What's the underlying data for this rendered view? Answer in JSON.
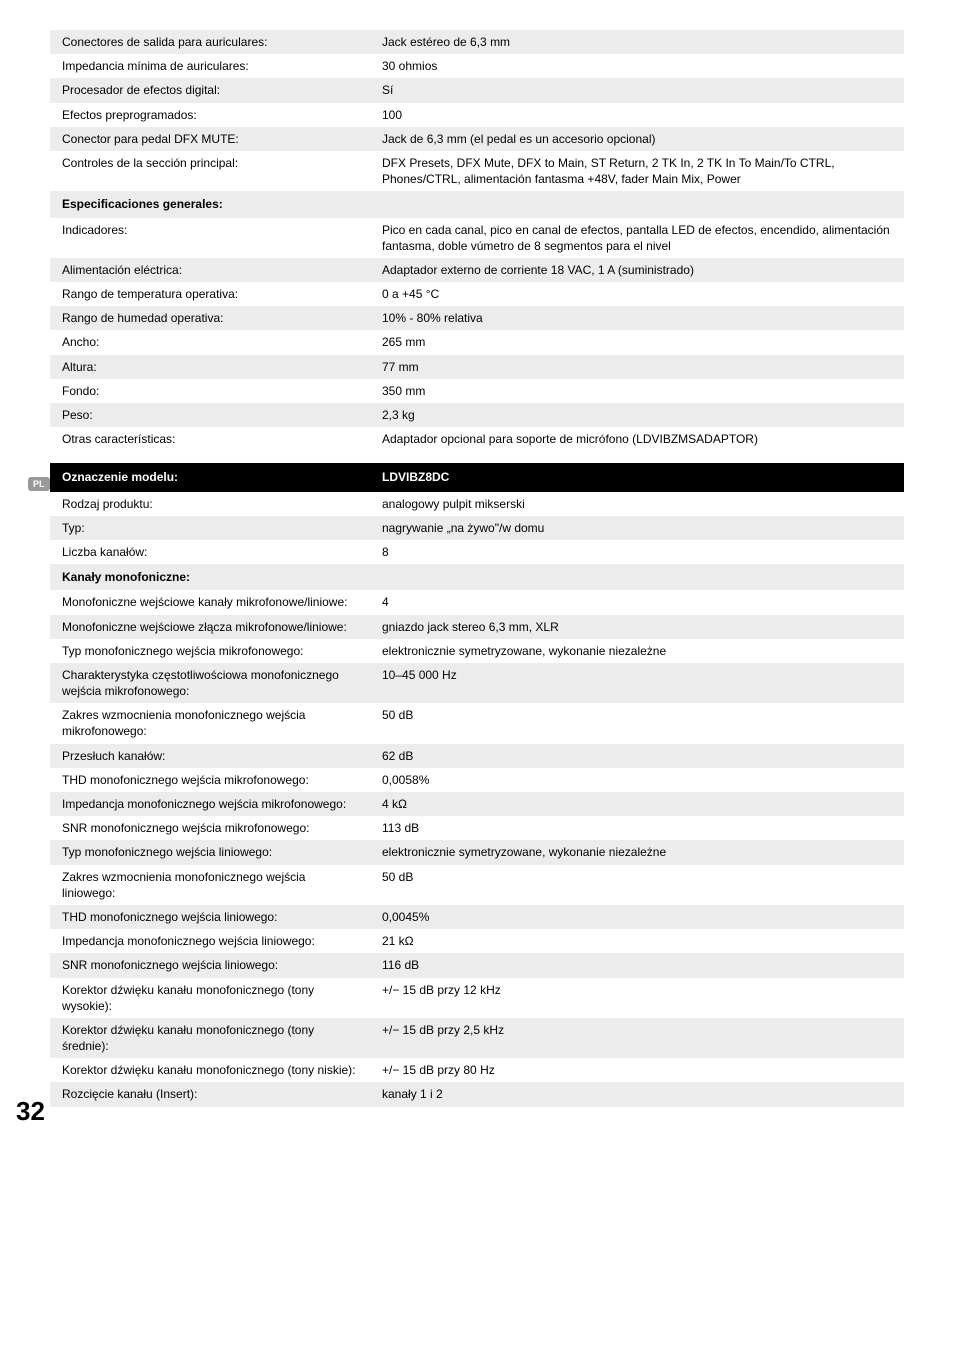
{
  "page_number": "32",
  "lang_badge": "PL",
  "colors": {
    "shade": "#ececec",
    "header_bg": "#000000",
    "header_fg": "#ffffff",
    "text": "#000000",
    "badge_bg": "#999999"
  },
  "table1": {
    "rows": [
      {
        "shade": true,
        "label": "Conectores de salida para auriculares:",
        "value": "Jack estéreo de 6,3 mm"
      },
      {
        "shade": false,
        "label": "Impedancia mínima de auriculares:",
        "value": "30 ohmios"
      },
      {
        "shade": true,
        "label": "Procesador de efectos digital:",
        "value": "Sí"
      },
      {
        "shade": false,
        "label": "Efectos preprogramados:",
        "value": "100"
      },
      {
        "shade": true,
        "label": "Conector para pedal DFX MUTE:",
        "value": "Jack de 6,3 mm (el pedal es un accesorio opcional)"
      },
      {
        "shade": false,
        "label": "Controles de la sección principal:",
        "value": "DFX Presets, DFX Mute, DFX to Main, ST Return, 2 TK In, 2 TK In To Main/To CTRL, Phones/CTRL, alimentación fantasma +48V, fader Main Mix, Power"
      },
      {
        "section": true,
        "shade": true,
        "label": "Especificaciones generales:",
        "value": ""
      },
      {
        "shade": false,
        "label": "Indicadores:",
        "value": "Pico en cada canal, pico en canal de efectos, pantalla LED de efectos, encendido, alimentación fantasma, doble vúmetro de 8 segmentos para el nivel"
      },
      {
        "shade": true,
        "label": "Alimentación eléctrica:",
        "value": "Adaptador externo de corriente 18 VAC, 1 A (suministrado)"
      },
      {
        "shade": false,
        "label": "Rango de temperatura operativa:",
        "value": "0 a +45 °C"
      },
      {
        "shade": true,
        "label": "Rango de humedad operativa:",
        "value": "10% - 80% relativa"
      },
      {
        "shade": false,
        "label": "Ancho:",
        "value": "265 mm"
      },
      {
        "shade": true,
        "label": "Altura:",
        "value": "77 mm"
      },
      {
        "shade": false,
        "label": "Fondo:",
        "value": "350 mm"
      },
      {
        "shade": true,
        "label": "Peso:",
        "value": "2,3 kg"
      },
      {
        "shade": false,
        "label": "Otras características:",
        "value": "Adaptador opcional para soporte de micrófono (LDVIBZMSADAPTOR)"
      }
    ]
  },
  "table2": {
    "header": {
      "label": "Oznaczenie modelu:",
      "value": "LDVIBZ8DC"
    },
    "rows": [
      {
        "shade": false,
        "label": "Rodzaj produktu:",
        "value": "analogowy pulpit mikserski"
      },
      {
        "shade": true,
        "label": "Typ:",
        "value": "nagrywanie „na żywo\"/w domu"
      },
      {
        "shade": false,
        "label": "Liczba kanałów:",
        "value": "8"
      },
      {
        "section": true,
        "shade": true,
        "label": "Kanały monofoniczne:",
        "value": ""
      },
      {
        "shade": false,
        "label": "Monofoniczne wejściowe kanały mikrofonowe/liniowe:",
        "value": "4"
      },
      {
        "shade": true,
        "label": "Monofoniczne wejściowe złącza mikrofonowe/liniowe:",
        "value": "gniazdo jack stereo 6,3 mm, XLR"
      },
      {
        "shade": false,
        "label": "Typ monofonicznego wejścia mikrofonowego:",
        "value": "elektronicznie symetryzowane, wykonanie niezależne"
      },
      {
        "shade": true,
        "label": "Charakterystyka częstotliwościowa monofonicznego wejścia mikrofonowego:",
        "value": "10–45 000 Hz"
      },
      {
        "shade": false,
        "label": "Zakres wzmocnienia monofonicznego wejścia mikrofonowego:",
        "value": "50 dB"
      },
      {
        "shade": true,
        "label": "Przesłuch kanałów:",
        "value": "62 dB"
      },
      {
        "shade": false,
        "label": "THD monofonicznego wejścia mikrofonowego:",
        "value": "0,0058%"
      },
      {
        "shade": true,
        "label": "Impedancja monofonicznego wejścia mikrofonowego:",
        "value": "4 kΩ"
      },
      {
        "shade": false,
        "label": "SNR monofonicznego wejścia mikrofonowego:",
        "value": "113 dB"
      },
      {
        "shade": true,
        "label": "Typ monofonicznego wejścia liniowego:",
        "value": "elektronicznie symetryzowane, wykonanie niezależne"
      },
      {
        "shade": false,
        "label": "Zakres wzmocnienia monofonicznego wejścia liniowego:",
        "value": "50 dB"
      },
      {
        "shade": true,
        "label": "THD monofonicznego wejścia liniowego:",
        "value": "0,0045%"
      },
      {
        "shade": false,
        "label": "Impedancja monofonicznego wejścia liniowego:",
        "value": "21 kΩ"
      },
      {
        "shade": true,
        "label": "SNR monofonicznego wejścia liniowego:",
        "value": "116 dB"
      },
      {
        "shade": false,
        "label": "Korektor dźwięku kanału monofonicznego (tony wysokie):",
        "value": "+/− 15 dB przy 12 kHz"
      },
      {
        "shade": true,
        "label": "Korektor dźwięku kanału monofonicznego (tony średnie):",
        "value": "+/− 15 dB przy 2,5 kHz"
      },
      {
        "shade": false,
        "label": "Korektor dźwięku kanału monofonicznego (tony niskie):",
        "value": "+/− 15 dB przy 80 Hz"
      },
      {
        "shade": true,
        "label": "Rozcięcie kanału (Insert):",
        "value": "kanały 1 i 2"
      }
    ]
  }
}
